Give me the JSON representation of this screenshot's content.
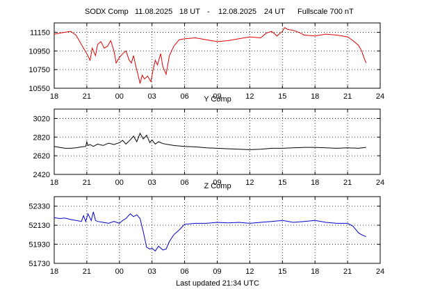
{
  "header": {
    "station": "SOD",
    "component": "X Comp",
    "start_date": "11.08.2025",
    "start_time": "18 UT",
    "separator": "-",
    "end_date": "12.08.2025",
    "end_time": "24 UT",
    "fullscale": "Fullscale 700 nT"
  },
  "footer": {
    "updated": "Last updated  21:34 UTC"
  },
  "chart_data": [
    {
      "type": "line",
      "title": "",
      "color": "#e00000",
      "xlabel": "",
      "ylabel": "",
      "xlim": [
        18,
        48
      ],
      "ylim": [
        10550,
        11250
      ],
      "xticks": [
        18,
        21,
        24,
        27,
        30,
        33,
        36,
        39,
        42,
        45,
        48
      ],
      "xtick_labels": [
        "18",
        "21",
        "00",
        "03",
        "06",
        "09",
        "12",
        "15",
        "18",
        "21",
        "24"
      ],
      "yticks": [
        10550,
        10750,
        10950,
        11150
      ],
      "ytick_labels": [
        "10550",
        "10750",
        "10950",
        "11150"
      ],
      "grid": true,
      "x": [
        18,
        18.5,
        19,
        19.5,
        20,
        20.3,
        20.6,
        21,
        21.3,
        21.5,
        21.8,
        22,
        22.3,
        22.6,
        22.9,
        23.2,
        23.5,
        23.7,
        24,
        24.3,
        24.6,
        24.9,
        25.1,
        25.3,
        25.5,
        25.7,
        25.9,
        26.1,
        26.3,
        26.6,
        26.9,
        27.1,
        27.3,
        27.5,
        27.8,
        28,
        28.3,
        28.6,
        29,
        29.5,
        30,
        31,
        32,
        33,
        34,
        35,
        36,
        37,
        37.5,
        38,
        38.5,
        39,
        39.2,
        39.5,
        40,
        40.5,
        41,
        42,
        43,
        44,
        45,
        45.5,
        46,
        46.3,
        46.5,
        46.7
      ],
      "y": [
        11130,
        11140,
        11150,
        11160,
        11120,
        11060,
        11000,
        10920,
        10850,
        10980,
        10900,
        11020,
        11050,
        10980,
        11000,
        11060,
        10950,
        10820,
        10880,
        10920,
        10950,
        10850,
        10820,
        10900,
        10790,
        10700,
        10600,
        10690,
        10650,
        10680,
        10620,
        10750,
        10850,
        10800,
        10920,
        10780,
        10700,
        10900,
        11000,
        11070,
        11080,
        11090,
        11070,
        11050,
        11060,
        11080,
        11100,
        11090,
        11140,
        11160,
        11110,
        11160,
        11200,
        11180,
        11170,
        11150,
        11120,
        11110,
        11130,
        11120,
        11100,
        11060,
        11010,
        10950,
        10880,
        10820
      ]
    },
    {
      "type": "line",
      "title": "Y Comp",
      "color": "#000000",
      "xlabel": "",
      "ylabel": "",
      "xlim": [
        18,
        48
      ],
      "ylim": [
        2420,
        3120
      ],
      "xticks": [
        18,
        21,
        24,
        27,
        30,
        33,
        36,
        39,
        42,
        45,
        48
      ],
      "xtick_labels": [
        "18",
        "21",
        "00",
        "03",
        "06",
        "09",
        "12",
        "15",
        "18",
        "21",
        "24"
      ],
      "yticks": [
        2420,
        2620,
        2820,
        3020
      ],
      "ytick_labels": [
        "2420",
        "2620",
        "2820",
        "3020"
      ],
      "grid": true,
      "x": [
        18,
        18.5,
        19,
        19.5,
        20,
        20.5,
        20.9,
        21,
        21.1,
        21.3,
        21.6,
        22,
        22.5,
        23,
        23.5,
        24,
        24.3,
        24.6,
        25,
        25.3,
        25.6,
        25.9,
        26.2,
        26.5,
        26.8,
        27,
        27.3,
        27.6,
        28,
        28.5,
        29,
        30,
        31,
        32,
        33,
        34,
        35,
        36,
        37,
        38,
        39,
        40,
        41,
        42,
        43,
        44,
        45,
        46,
        46.7
      ],
      "y": [
        2720,
        2710,
        2700,
        2700,
        2705,
        2715,
        2720,
        2770,
        2730,
        2740,
        2720,
        2745,
        2730,
        2755,
        2740,
        2760,
        2785,
        2745,
        2790,
        2830,
        2770,
        2860,
        2800,
        2840,
        2760,
        2790,
        2745,
        2770,
        2750,
        2740,
        2730,
        2720,
        2715,
        2705,
        2700,
        2695,
        2690,
        2685,
        2690,
        2700,
        2700,
        2705,
        2710,
        2710,
        2705,
        2700,
        2705,
        2700,
        2710
      ]
    },
    {
      "type": "line",
      "title": "Z Comp",
      "color": "#0000cc",
      "xlabel": "",
      "ylabel": "",
      "xlim": [
        18,
        48
      ],
      "ylim": [
        51730,
        52430
      ],
      "xticks": [
        18,
        21,
        24,
        27,
        30,
        33,
        36,
        39,
        42,
        45,
        48
      ],
      "xtick_labels": [
        "18",
        "21",
        "00",
        "03",
        "06",
        "09",
        "12",
        "15",
        "18",
        "21",
        "24"
      ],
      "yticks": [
        51730,
        51930,
        52130,
        52330
      ],
      "ytick_labels": [
        "51730",
        "51930",
        "52130",
        "52330"
      ],
      "grid": true,
      "x": [
        18,
        18.5,
        19,
        19.5,
        20,
        20.5,
        20.7,
        20.9,
        21.1,
        21.4,
        21.6,
        21.8,
        22,
        22.5,
        23,
        23.5,
        24,
        24.3,
        24.6,
        25,
        25.3,
        25.6,
        25.9,
        26.2,
        26.5,
        26.8,
        27,
        27.3,
        27.6,
        28,
        28.3,
        28.6,
        29,
        29.5,
        30,
        31,
        32,
        33,
        34,
        35,
        36,
        37,
        38,
        39,
        40,
        41,
        42,
        43,
        44,
        45,
        45.5,
        46,
        46.3,
        46.7
      ],
      "y": [
        52210,
        52200,
        52205,
        52190,
        52180,
        52170,
        52230,
        52170,
        52250,
        52180,
        52270,
        52180,
        52170,
        52160,
        52150,
        52170,
        52150,
        52180,
        52200,
        52250,
        52220,
        52240,
        52200,
        52060,
        51900,
        51880,
        51890,
        51860,
        51910,
        51870,
        51880,
        51960,
        52030,
        52080,
        52140,
        52150,
        52150,
        52160,
        52155,
        52160,
        52150,
        52160,
        52170,
        52180,
        52160,
        52170,
        52180,
        52160,
        52150,
        52150,
        52120,
        52050,
        52030,
        52010
      ]
    }
  ]
}
